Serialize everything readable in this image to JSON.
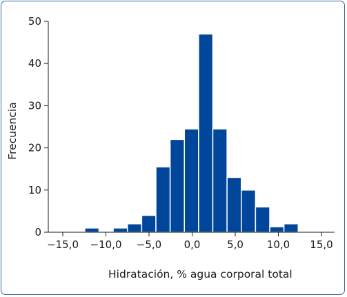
{
  "chart_data": {
    "type": "bar",
    "subtype": "histogram",
    "xlabel": "Hidratación, % agua corporal total",
    "ylabel": "Frecuencia",
    "x_ticks": [
      -15,
      -10,
      -5,
      0,
      5,
      10,
      15
    ],
    "x_tick_labels": [
      "−15,0",
      "−10,0",
      "−5,0",
      "0,0",
      "5,0",
      "10,0",
      "15,0"
    ],
    "y_ticks": [
      0,
      10,
      20,
      30,
      40,
      50
    ],
    "y_tick_labels": [
      "0",
      "10",
      "20",
      "30",
      "40",
      "50"
    ],
    "xlim": [
      -16.5,
      16.5
    ],
    "ylim": [
      0,
      50
    ],
    "bin_width": 1.65,
    "bins": [
      {
        "x0": -12.45,
        "x1": -10.8,
        "value": 1
      },
      {
        "x0": -10.8,
        "x1": -9.15,
        "value": 0
      },
      {
        "x0": -9.15,
        "x1": -7.5,
        "value": 1
      },
      {
        "x0": -7.5,
        "x1": -5.85,
        "value": 2
      },
      {
        "x0": -5.85,
        "x1": -4.2,
        "value": 4
      },
      {
        "x0": -4.2,
        "x1": -2.55,
        "value": 15.5
      },
      {
        "x0": -2.55,
        "x1": -0.9,
        "value": 22
      },
      {
        "x0": -0.9,
        "x1": 0.75,
        "value": 24.5
      },
      {
        "x0": 0.75,
        "x1": 2.4,
        "value": 47
      },
      {
        "x0": 2.4,
        "x1": 4.05,
        "value": 24.5
      },
      {
        "x0": 4.05,
        "x1": 5.7,
        "value": 13
      },
      {
        "x0": 5.7,
        "x1": 7.35,
        "value": 10
      },
      {
        "x0": 7.35,
        "x1": 9.0,
        "value": 6
      },
      {
        "x0": 9.0,
        "x1": 10.65,
        "value": 1.3
      },
      {
        "x0": 10.65,
        "x1": 12.3,
        "value": 2
      }
    ],
    "bar_color": "#00469b",
    "axis_color": "#1a1a1a",
    "frame_color": "#2e63a8",
    "grid": false,
    "legend": "none"
  }
}
